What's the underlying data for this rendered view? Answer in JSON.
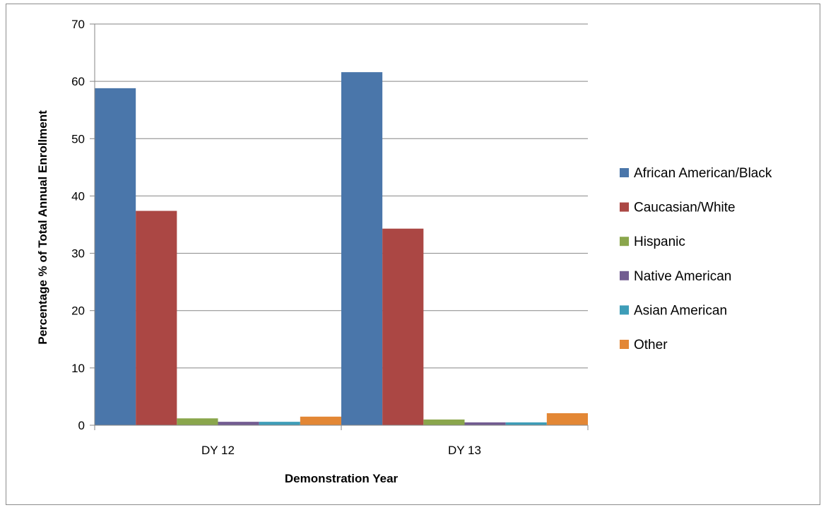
{
  "chart_data": {
    "type": "bar",
    "categories": [
      "DY 12",
      "DY 13"
    ],
    "series": [
      {
        "name": "African American/Black",
        "values": [
          58.8,
          61.6
        ],
        "color": "#4a76aa"
      },
      {
        "name": "Caucasian/White",
        "values": [
          37.4,
          34.3
        ],
        "color": "#ab4744"
      },
      {
        "name": "Hispanic",
        "values": [
          1.2,
          1.0
        ],
        "color": "#8aa64c"
      },
      {
        "name": "Native American",
        "values": [
          0.6,
          0.5
        ],
        "color": "#725c91"
      },
      {
        "name": "Asian American",
        "values": [
          0.6,
          0.5
        ],
        "color": "#3e9db8"
      },
      {
        "name": "Other",
        "values": [
          1.5,
          2.1
        ],
        "color": "#e38735"
      }
    ],
    "xlabel": "Demonstration Year",
    "ylabel": "Percentage % of Total Annual Enrollment",
    "ylim": [
      0,
      70
    ],
    "yticks": [
      0,
      10,
      20,
      30,
      40,
      50,
      60,
      70
    ],
    "grid": true,
    "legend_position": "right"
  }
}
